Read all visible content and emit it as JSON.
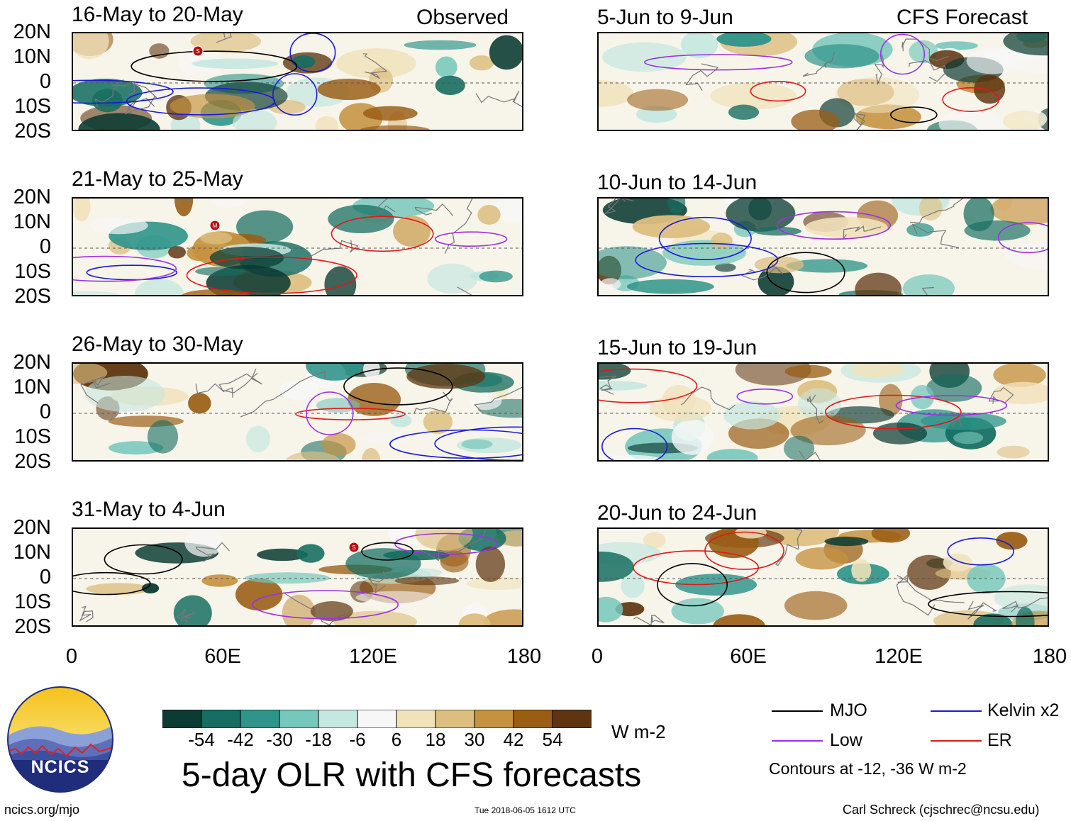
{
  "title": "5-day OLR with CFS forecasts",
  "headers": {
    "observed": "Observed",
    "forecast": "CFS Forecast"
  },
  "panels": {
    "observed": [
      "16-May to 20-May",
      "21-May to 25-May",
      "26-May to 30-May",
      "31-May to 4-Jun"
    ],
    "forecast": [
      "5-Jun to 9-Jun",
      "10-Jun to 14-Jun",
      "15-Jun to 19-Jun",
      "20-Jun to 24-Jun"
    ]
  },
  "axes": {
    "lat_labels": [
      "20N",
      "10N",
      "0",
      "10S",
      "20S"
    ],
    "lon_labels": [
      "0",
      "60E",
      "120E",
      "180"
    ]
  },
  "colorbar": {
    "labels": [
      "-54",
      "-42",
      "-30",
      "-18",
      "-6",
      "6",
      "18",
      "30",
      "42",
      "54"
    ],
    "units": "W m-2",
    "colors": [
      "#0b3b32",
      "#166d61",
      "#2f948a",
      "#76c7bc",
      "#c4e7e0",
      "#f7f7f7",
      "#f1e2bb",
      "#ddbe80",
      "#c5923f",
      "#9a5d14",
      "#5e3510"
    ]
  },
  "legend": {
    "items": [
      {
        "label": "MJO",
        "color": "#000000"
      },
      {
        "label": "Kelvin x2",
        "color": "#1a1ad8"
      },
      {
        "label": "Low",
        "color": "#9b30e6"
      },
      {
        "label": "ER",
        "color": "#e01818"
      }
    ],
    "note": "Contours at -12, -36 W m-2"
  },
  "logo": {
    "text": "NCICS"
  },
  "footer": {
    "url": "ncics.org/mjo",
    "timestamp": "Tue 2018-06-05 1612 UTC",
    "credit": "Carl Schreck (cjschrec@ncsu.edu)"
  },
  "storm_markers": [
    "S",
    "M",
    "S"
  ]
}
